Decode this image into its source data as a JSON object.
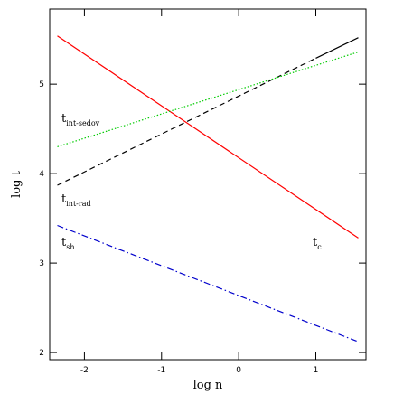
{
  "chart_data": {
    "type": "line",
    "x_label": "log n",
    "y_label": "log t",
    "xlim": [
      -2.45,
      1.65
    ],
    "xticks": [
      -2,
      -1,
      0,
      1
    ],
    "ylim": [
      1.92,
      5.84
    ],
    "yticks": [
      2,
      3,
      4,
      5
    ],
    "series": [
      {
        "color": "#ff0000",
        "style": "solid",
        "x": [
          -2.35,
          1.55
        ],
        "values": [
          5.54,
          3.28
        ]
      },
      {
        "color": "#000000",
        "style": "dashed",
        "x": [
          -2.35,
          1.0
        ],
        "values": [
          3.87,
          5.29
        ]
      },
      {
        "color": "#000000",
        "style": "solid",
        "x": [
          1.0,
          1.55
        ],
        "values": [
          5.29,
          5.52
        ]
      },
      {
        "color": "#00cc00",
        "style": "dotted",
        "x": [
          -2.35,
          1.55
        ],
        "values": [
          4.3,
          5.36
        ]
      },
      {
        "color": "#0000cc",
        "style": "dashdot",
        "x": [
          -2.35,
          1.55
        ],
        "values": [
          3.42,
          2.12
        ]
      }
    ],
    "annotations": [
      {
        "text": "t",
        "sub": "int-sedov"
      },
      {
        "text": "t",
        "sub": "int-rad"
      },
      {
        "text": "t",
        "sub": "sh"
      },
      {
        "text": "t",
        "sub": "c"
      }
    ]
  }
}
